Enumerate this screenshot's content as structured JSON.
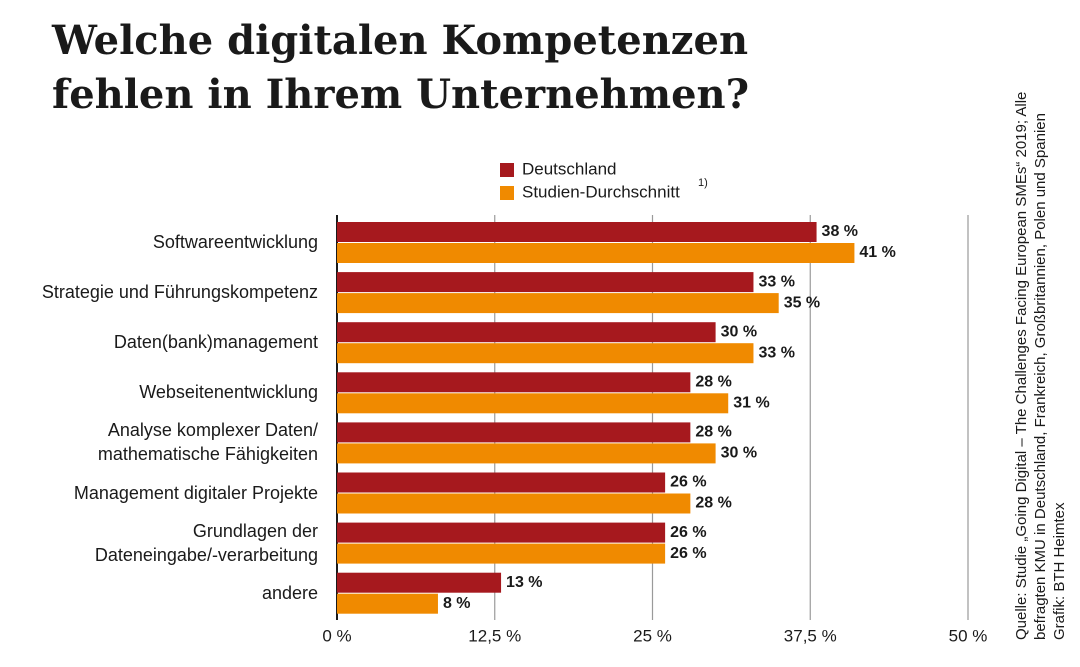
{
  "chart_data": {
    "type": "bar",
    "orientation": "horizontal",
    "title": [
      "Welche digitalen Kompetenzen",
      "fehlen in Ihrem Unternehmen?"
    ],
    "categories": [
      "Softwareentwicklung",
      "Strategie und Führungskompetenz",
      "Daten(bank)management",
      "Webseitenentwicklung",
      "Analyse komplexer Daten/\nmathematische Fähigkeiten",
      "Management digitaler Projekte",
      "Grundlagen der\nDateneingabe/-verarbeitung",
      "andere"
    ],
    "series": [
      {
        "name": "Deutschland",
        "color": "#a6191e",
        "values": [
          38,
          33,
          30,
          28,
          28,
          26,
          26,
          13
        ],
        "value_labels": [
          "38 %",
          "33 %",
          "30 %",
          "28 %",
          "28 %",
          "26 %",
          "26 %",
          "13 %"
        ]
      },
      {
        "name": "Studien-Durchschnitt",
        "color": "#f08a00",
        "values": [
          41,
          35,
          33,
          31,
          30,
          28,
          26,
          8
        ],
        "value_labels": [
          "41 %",
          "35 %",
          "33 %",
          "31 %",
          "30 %",
          "28 %",
          "26 %",
          "8 %"
        ]
      }
    ],
    "legend_footnote": "1)",
    "xlim": [
      0,
      50
    ],
    "xticks": [
      {
        "value": 0,
        "label": "0 %"
      },
      {
        "value": 12.5,
        "label": "12,5 %"
      },
      {
        "value": 25,
        "label": "25 %"
      },
      {
        "value": 37.5,
        "label": "37,5 %"
      },
      {
        "value": 50,
        "label": "50 %"
      }
    ],
    "grid": true,
    "source_lines": [
      "Quelle: Studie „Going Digital – The Challenges Facing European SMEs“ 2019; Alle",
      "befragten KMU in Deutschland, Frankreich, Großbritannien, Polen und Spanien",
      "Grafik: BTH Heimtex"
    ]
  }
}
